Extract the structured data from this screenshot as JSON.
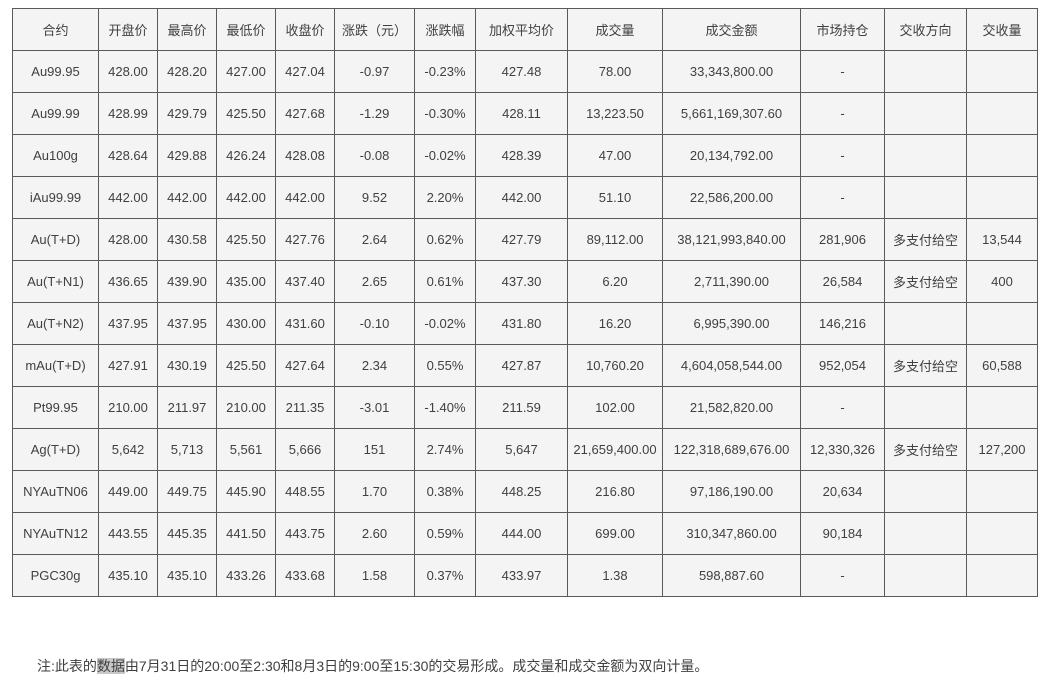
{
  "table": {
    "columns": [
      "合约",
      "开盘价",
      "最高价",
      "最低价",
      "收盘价",
      "涨跌（元）",
      "涨跌幅",
      "加权平均价",
      "成交量",
      "成交金额",
      "市场持仓",
      "交收方向",
      "交收量"
    ],
    "rows": [
      [
        "Au99.95",
        "428.00",
        "428.20",
        "427.00",
        "427.04",
        "-0.97",
        "-0.23%",
        "427.48",
        "78.00",
        "33,343,800.00",
        "-",
        "",
        ""
      ],
      [
        "Au99.99",
        "428.99",
        "429.79",
        "425.50",
        "427.68",
        "-1.29",
        "-0.30%",
        "428.11",
        "13,223.50",
        "5,661,169,307.60",
        "-",
        "",
        ""
      ],
      [
        "Au100g",
        "428.64",
        "429.88",
        "426.24",
        "428.08",
        "-0.08",
        "-0.02%",
        "428.39",
        "47.00",
        "20,134,792.00",
        "-",
        "",
        ""
      ],
      [
        "iAu99.99",
        "442.00",
        "442.00",
        "442.00",
        "442.00",
        "9.52",
        "2.20%",
        "442.00",
        "51.10",
        "22,586,200.00",
        "-",
        "",
        ""
      ],
      [
        "Au(T+D)",
        "428.00",
        "430.58",
        "425.50",
        "427.76",
        "2.64",
        "0.62%",
        "427.79",
        "89,112.00",
        "38,121,993,840.00",
        "281,906",
        "多支付给空",
        "13,544"
      ],
      [
        "Au(T+N1)",
        "436.65",
        "439.90",
        "435.00",
        "437.40",
        "2.65",
        "0.61%",
        "437.30",
        "6.20",
        "2,711,390.00",
        "26,584",
        "多支付给空",
        "400"
      ],
      [
        "Au(T+N2)",
        "437.95",
        "437.95",
        "430.00",
        "431.60",
        "-0.10",
        "-0.02%",
        "431.80",
        "16.20",
        "6,995,390.00",
        "146,216",
        "",
        ""
      ],
      [
        "mAu(T+D)",
        "427.91",
        "430.19",
        "425.50",
        "427.64",
        "2.34",
        "0.55%",
        "427.87",
        "10,760.20",
        "4,604,058,544.00",
        "952,054",
        "多支付给空",
        "60,588"
      ],
      [
        "Pt99.95",
        "210.00",
        "211.97",
        "210.00",
        "211.35",
        "-3.01",
        "-1.40%",
        "211.59",
        "102.00",
        "21,582,820.00",
        "-",
        "",
        ""
      ],
      [
        "Ag(T+D)",
        "5,642",
        "5,713",
        "5,561",
        "5,666",
        "151",
        "2.74%",
        "5,647",
        "21,659,400.00",
        "122,318,689,676.00",
        "12,330,326",
        "多支付给空",
        "127,200"
      ],
      [
        "NYAuTN06",
        "449.00",
        "449.75",
        "445.90",
        "448.55",
        "1.70",
        "0.38%",
        "448.25",
        "216.80",
        "97,186,190.00",
        "20,634",
        "",
        ""
      ],
      [
        "NYAuTN12",
        "443.55",
        "445.35",
        "441.50",
        "443.75",
        "2.60",
        "0.59%",
        "444.00",
        "699.00",
        "310,347,860.00",
        "90,184",
        "",
        ""
      ],
      [
        "PGC30g",
        "435.10",
        "435.10",
        "433.26",
        "433.68",
        "1.58",
        "0.37%",
        "433.97",
        "1.38",
        "598,887.60",
        "-",
        "",
        ""
      ]
    ]
  },
  "footnote": {
    "prefix": "注:此表的",
    "highlighted": "数据",
    "suffix": "由7月31日的20:00至2:30和8月3日的9:00至15:30的交易形成。成交量和成交金额为双向计量。"
  },
  "colors": {
    "cell_background": "#f4f4f4",
    "border": "#595959",
    "text": "#404040",
    "selection_highlight": "#c9c9c9",
    "page_background": "#ffffff"
  }
}
